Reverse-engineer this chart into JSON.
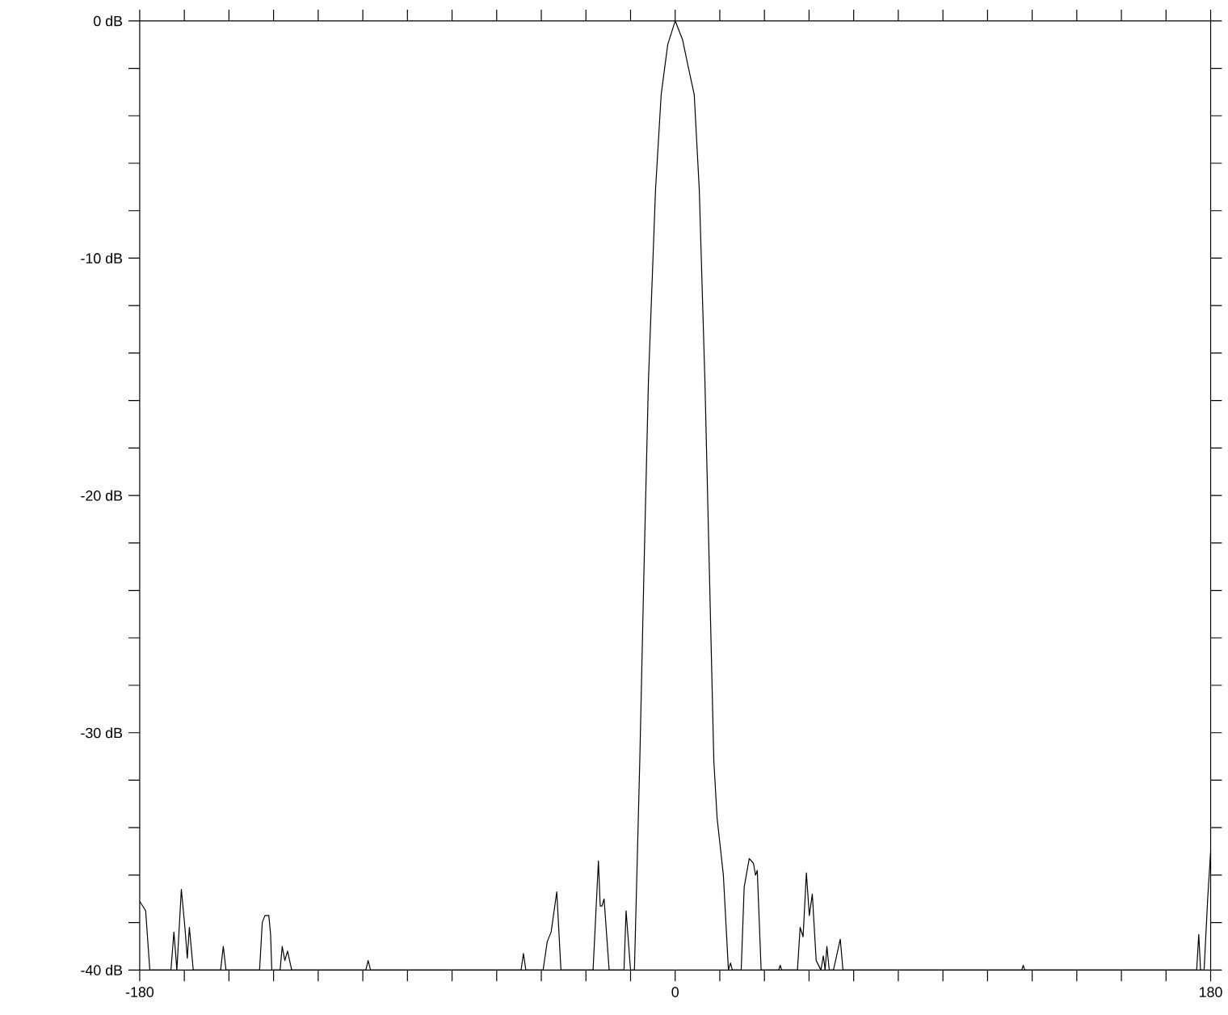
{
  "chart_data": {
    "type": "line",
    "x": [
      -180,
      -178,
      -176.6,
      -169.5,
      -168.5,
      -167.5,
      -166.0,
      -164.8,
      -164.0,
      -163.3,
      -162,
      -152.8,
      -151.9,
      -151,
      -139.7,
      -138.8,
      -137.9,
      -136.6,
      -136,
      -135.6,
      -132.8,
      -132.1,
      -131.2,
      -130.3,
      -128.9,
      -104,
      -103.2,
      -102.4,
      -51.8,
      -51.0,
      -50.2,
      -44.4,
      -43,
      -41.7,
      -39.8,
      -38.4,
      -27.6,
      -25.8,
      -25.2,
      -24.6,
      -23.9,
      -22.2,
      -17.2,
      -16.5,
      -15.0,
      -13.7,
      -11.9,
      -10.5,
      -9.0,
      -6.6,
      -4.7,
      -2.5,
      0,
      2.5,
      4.5,
      6.4,
      8.1,
      10.0,
      11.5,
      13.0,
      14.1,
      16.2,
      17.9,
      18.6,
      19.2,
      22.2,
      23.2,
      24.9,
      26.3,
      27.0,
      27.6,
      28.9,
      34.8,
      35.3,
      35.8,
      41.1,
      42.0,
      43.0,
      44.1,
      45.1,
      46.1,
      47.4,
      49,
      49.8,
      50.4,
      51.0,
      51.8,
      53.2,
      55.5,
      56.4,
      116.5,
      117,
      117.5,
      175.3,
      176.0,
      176.6,
      177.8,
      179,
      180
    ],
    "values": [
      -37.1,
      -37.5,
      -40,
      -40,
      -38.4,
      -40,
      -36.6,
      -38.2,
      -39.5,
      -38.2,
      -40,
      -40,
      -39.0,
      -40,
      -40,
      -38.0,
      -37.7,
      -37.7,
      -38.5,
      -40,
      -40,
      -39.0,
      -39.6,
      -39.2,
      -40,
      -40,
      -39.6,
      -40,
      -40,
      -39.3,
      -40,
      -40,
      -38.8,
      -38.4,
      -36.7,
      -40,
      -40,
      -35.4,
      -37.3,
      -37.3,
      -37.0,
      -40,
      -40,
      -37.5,
      -40,
      -40,
      -31.2,
      -23.2,
      -15.2,
      -7.1,
      -3.1,
      -1.0,
      0,
      -0.8,
      -2.0,
      -3.1,
      -7.1,
      -15.2,
      -23.2,
      -31.2,
      -33.6,
      -36,
      -40,
      -39.7,
      -40,
      -40,
      -36.5,
      -35.3,
      -35.5,
      -36.0,
      -35.8,
      -40,
      -40,
      -39.8,
      -40,
      -40,
      -38.2,
      -38.6,
      -35.9,
      -37.7,
      -36.8,
      -39.6,
      -40,
      -39.4,
      -40,
      -39.0,
      -40,
      -40,
      -38.7,
      -40,
      -40,
      -39.8,
      -40,
      -40,
      -38.5,
      -40,
      -40,
      -37,
      -35
    ],
    "color": "#000000",
    "marker": "none",
    "line_style": "solid",
    "grid": false,
    "xlim": [
      -180,
      180
    ],
    "ylim": [
      -40,
      0
    ],
    "xticks": [
      -180,
      {
        "value": -165,
        "label": null
      },
      {
        "value": -150,
        "label": null
      },
      {
        "value": -135,
        "label": null
      },
      {
        "value": -120,
        "label": null
      },
      {
        "value": -105,
        "label": null
      },
      {
        "value": -90,
        "label": null
      },
      {
        "value": -75,
        "label": null
      },
      {
        "value": -60,
        "label": null
      },
      {
        "value": -45,
        "label": null
      },
      {
        "value": -30,
        "label": null
      },
      {
        "value": -15,
        "label": null
      },
      0,
      {
        "value": 15,
        "label": null
      },
      {
        "value": 30,
        "label": null
      },
      {
        "value": 45,
        "label": null
      },
      {
        "value": 60,
        "label": null
      },
      {
        "value": 75,
        "label": null
      },
      {
        "value": 90,
        "label": null
      },
      {
        "value": 105,
        "label": null
      },
      {
        "value": 120,
        "label": null
      },
      {
        "value": 135,
        "label": null
      },
      {
        "value": 150,
        "label": null
      },
      {
        "value": 165,
        "label": null
      },
      180
    ],
    "yticks": [
      {
        "value": -40,
        "label": "-40 dB"
      },
      {
        "value": -38,
        "label": null
      },
      {
        "value": -36,
        "label": null
      },
      {
        "value": -34,
        "label": null
      },
      {
        "value": -32,
        "label": null
      },
      {
        "value": -30,
        "label": "-30 dB"
      },
      {
        "value": -28,
        "label": null
      },
      {
        "value": -26,
        "label": null
      },
      {
        "value": -24,
        "label": null
      },
      {
        "value": -22,
        "label": null
      },
      {
        "value": -20,
        "label": "-20 dB"
      },
      {
        "value": -18,
        "label": null
      },
      {
        "value": -16,
        "label": null
      },
      {
        "value": -14,
        "label": null
      },
      {
        "value": -12,
        "label": null
      },
      {
        "value": -10,
        "label": "-10 dB"
      },
      {
        "value": -8,
        "label": null
      },
      {
        "value": -6,
        "label": null
      },
      {
        "value": -4,
        "label": null
      },
      {
        "value": -2,
        "label": null
      },
      {
        "value": 0,
        "label": "0 dB"
      }
    ]
  }
}
